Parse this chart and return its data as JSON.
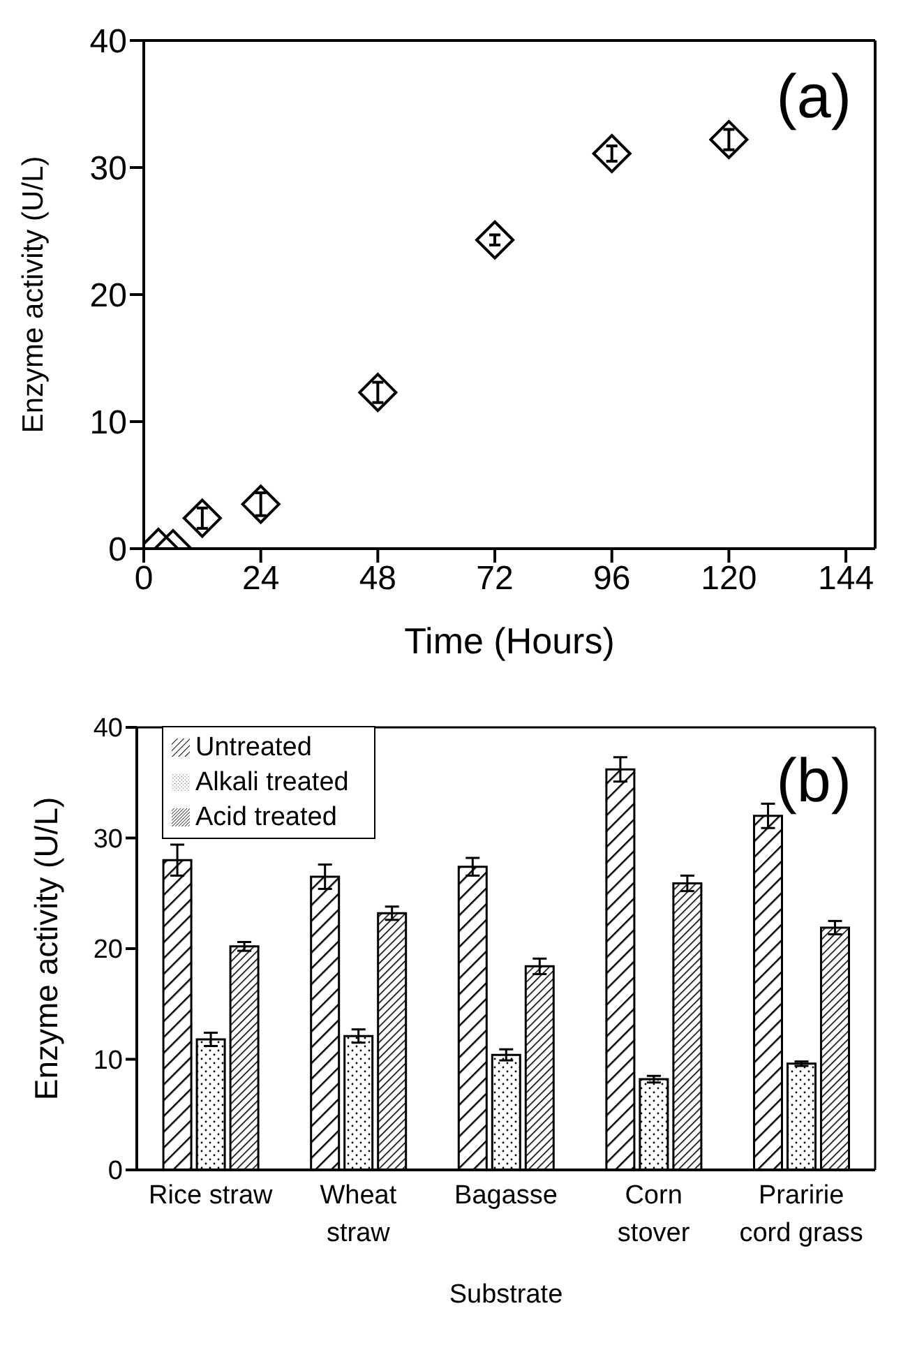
{
  "chart_data": [
    {
      "type": "scatter",
      "xlabel": "Time (Hours)",
      "ylabel": "Enzyme activity (U/L)",
      "annotations": [
        "(a)"
      ],
      "x": [
        3,
        6,
        12,
        24,
        48,
        72,
        96,
        120
      ],
      "series": [
        {
          "color": "#000000",
          "values": [
            0.1,
            0,
            2.4,
            3.5,
            12.3,
            24.3,
            31.1,
            32.2
          ],
          "errors": [
            null,
            null,
            0.8,
            0.9,
            0.8,
            0.4,
            0.6,
            0.8
          ]
        }
      ],
      "marker": "diamond",
      "xlim": [
        0,
        150
      ],
      "xticks": [
        0,
        24,
        48,
        72,
        96,
        120,
        144
      ],
      "ylim": [
        0,
        40
      ],
      "yticks": [
        0,
        10,
        20,
        30,
        40
      ],
      "grid": false
    },
    {
      "type": "bar",
      "xlabel": "Substrate",
      "ylabel": "Enzyme activity (U/L)",
      "annotations": [
        "(b)"
      ],
      "categories": [
        "Rice straw",
        "Wheat\nstraw",
        "Bagasse",
        "Corn\nstover",
        "Praririe\ncord grass"
      ],
      "series": [
        {
          "name": "Untreated",
          "color": "#000000",
          "values": [
            28,
            26.5,
            27.4,
            36.2,
            32
          ],
          "errors": [
            1.4,
            1.1,
            0.8,
            1.1,
            1.1
          ]
        },
        {
          "name": "Alkali treated",
          "color": "#000000",
          "values": [
            11.8,
            12.1,
            10.4,
            8.2,
            9.6
          ],
          "errors": [
            0.6,
            0.6,
            0.5,
            0.3,
            0.2
          ]
        },
        {
          "name": "Acid treated",
          "color": "#000000",
          "values": [
            20.2,
            23.2,
            18.4,
            25.9,
            21.9
          ],
          "errors": [
            0.4,
            0.6,
            0.7,
            0.7,
            0.6
          ]
        }
      ],
      "ylim": [
        0,
        40
      ],
      "yticks": [
        0,
        10,
        20,
        30,
        40
      ],
      "grid": false,
      "legend": "top left"
    }
  ]
}
